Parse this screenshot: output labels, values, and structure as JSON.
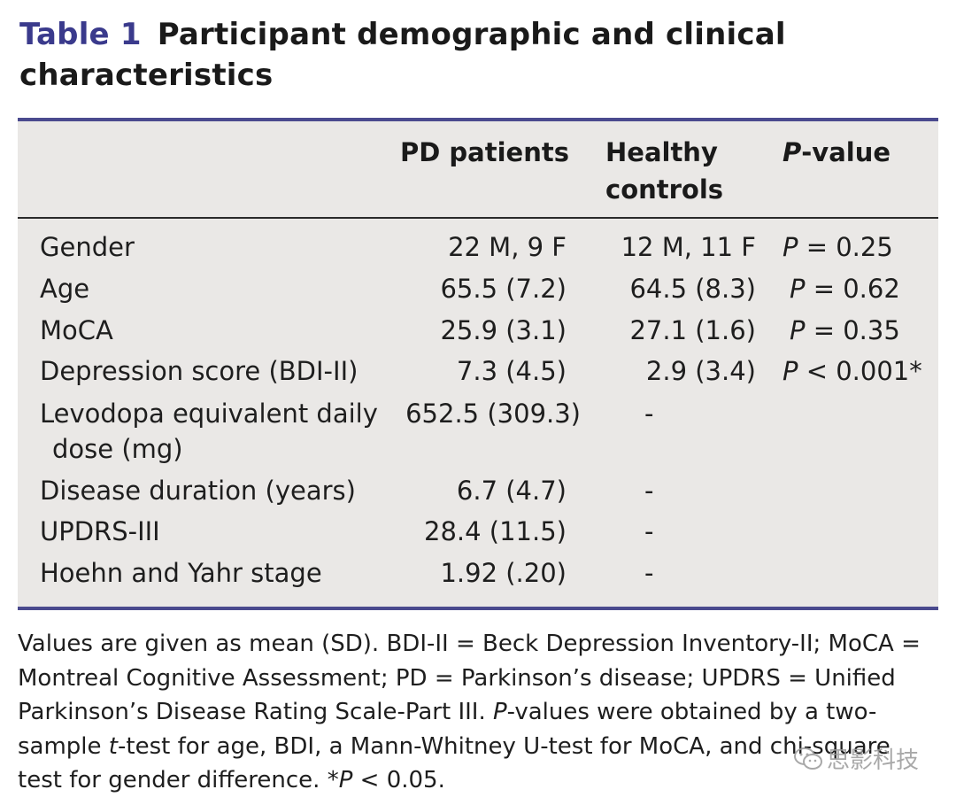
{
  "title": {
    "label": "Table 1",
    "text": "Participant demographic and clinical characteristics"
  },
  "table": {
    "headers": {
      "pd": "PD patients",
      "hc": "Healthy controls",
      "pv_italic": "P",
      "pv_rest": "-value"
    },
    "rows": [
      {
        "variable": "Gender",
        "pd": "22 M, 9 F",
        "hc": "12 M, 11 F",
        "p_italic": "P",
        "p_rest": " = 0.25"
      },
      {
        "variable": "Age",
        "pd": "65.5 (7.2)",
        "hc": "64.5 (8.3)",
        "p_italic": "P",
        "p_rest": " = 0.62"
      },
      {
        "variable": "MoCA",
        "pd": "25.9 (3.1)",
        "hc": "27.1 (1.6)",
        "p_italic": "P",
        "p_rest": " = 0.35"
      },
      {
        "variable": "Depression score (BDI-II)",
        "pd": "7.3 (4.5)",
        "hc": "2.9 (3.4)",
        "p_italic": "P",
        "p_rest": " < 0.001*"
      },
      {
        "variable": "Levodopa equivalent daily dose (mg)",
        "pd": "652.5 (309.3)",
        "hc": "-",
        "p_italic": "",
        "p_rest": ""
      },
      {
        "variable": "Disease duration (years)",
        "pd": "6.7 (4.7)",
        "hc": "-",
        "p_italic": "",
        "p_rest": ""
      },
      {
        "variable": "UPDRS-III",
        "pd": "28.4 (11.5)",
        "hc": "-",
        "p_italic": "",
        "p_rest": ""
      },
      {
        "variable": "Hoehn and Yahr stage",
        "pd": "1.92 (.20)",
        "hc": "-",
        "p_italic": "",
        "p_rest": ""
      }
    ]
  },
  "footnote": {
    "part1": "Values are given as mean (SD). BDI-II = Beck Depression Inventory-II; MoCA = Montreal Cognitive Assessment; PD = Parkinson’s disease; UPDRS = Unified Parkinson’s Disease Rating Scale-Part III. ",
    "p_italic": "P",
    "part2": "-values were obtained by a two-sample ",
    "t_italic": "t",
    "part3": "-test for age, BDI, a Mann-Whitney U-test for MoCA, and chi-square test for gender difference. *",
    "p2_italic": "P",
    "part4": " < 0.05."
  },
  "watermark": {
    "text": "思影科技",
    "icon": "wechat-icon"
  }
}
